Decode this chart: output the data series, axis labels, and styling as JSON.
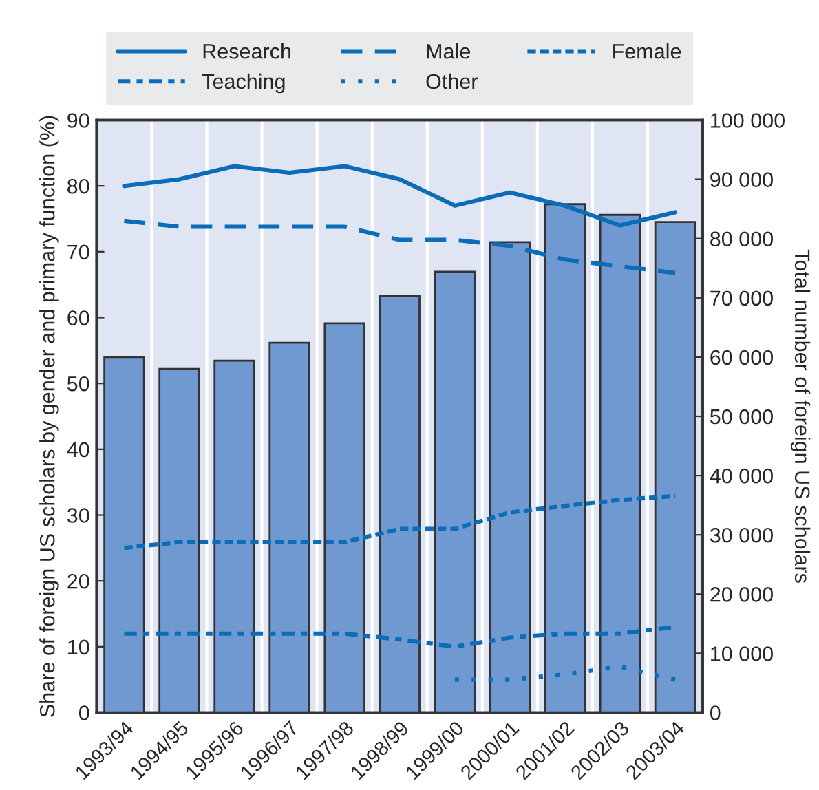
{
  "chart_data": {
    "type": "line",
    "ylabel": "Share of foreign US scholars by gender and primary function (%)",
    "y2label": "Total number of foreign US scholars",
    "categories": [
      "1993/94",
      "1994/95",
      "1995/96",
      "1996/97",
      "1997/98",
      "1998/99",
      "1999/00",
      "2000/01",
      "2001/02",
      "2002/03",
      "2003/04"
    ],
    "series": [
      {
        "type": "bar",
        "axis": "y2",
        "color": "#6f99d0",
        "values": [
          60000,
          58000,
          59400,
          62400,
          65700,
          70300,
          74400,
          79400,
          85800,
          84000,
          82800
        ]
      },
      {
        "name": "Research",
        "color": "#0b6db7",
        "line_style": "solid",
        "values": [
          80,
          81,
          83,
          82,
          83,
          81,
          77,
          79,
          77,
          74,
          76
        ]
      },
      {
        "name": "Male",
        "color": "#0b6db7",
        "line_style": "dashed",
        "values": [
          74.7,
          73.8,
          73.8,
          73.8,
          73.8,
          71.8,
          71.8,
          70.9,
          68.8,
          67.8,
          66.8
        ]
      },
      {
        "name": "Female",
        "color": "#0b6db7",
        "line_style": "densely dashed",
        "values": [
          25,
          25.9,
          25.9,
          25.9,
          25.9,
          27.9,
          27.9,
          30.4,
          31.4,
          32.3,
          32.9
        ]
      },
      {
        "name": "Teaching",
        "color": "#0b6db7",
        "line_style": "dashdot",
        "values": [
          12,
          12,
          12,
          12,
          12,
          11.1,
          10,
          11.4,
          12,
          12,
          13
        ]
      },
      {
        "name": "Other",
        "color": "#0b6db7",
        "line_style": "dotted",
        "values": [
          null,
          null,
          null,
          null,
          null,
          null,
          5,
          5,
          5.8,
          7,
          5
        ]
      }
    ],
    "ylim": [
      0,
      90
    ],
    "yticks": [
      0,
      10,
      20,
      30,
      40,
      50,
      60,
      70,
      80,
      90
    ],
    "y2lim": [
      0,
      100000
    ],
    "y2ticks": [
      0,
      {
        "value": 10000,
        "label": "10 000"
      },
      {
        "value": 20000,
        "label": "20 000"
      },
      {
        "value": 30000,
        "label": "30 000"
      },
      {
        "value": 40000,
        "label": "40 000"
      },
      {
        "value": 50000,
        "label": "50 000"
      },
      {
        "value": 60000,
        "label": "60 000"
      },
      {
        "value": 70000,
        "label": "70 000"
      },
      {
        "value": 80000,
        "label": "80 000"
      },
      {
        "value": 90000,
        "label": "90 000"
      },
      {
        "value": 100000,
        "label": "100 000"
      }
    ],
    "grid": "x",
    "legend": "top"
  }
}
